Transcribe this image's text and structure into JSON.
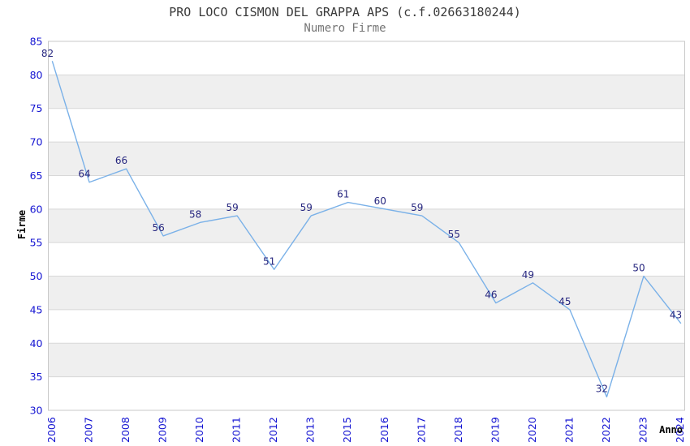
{
  "chart_data": {
    "type": "line",
    "title": "PRO LOCO CISMON DEL GRAPPA APS (c.f.02663180244)",
    "subtitle": "Numero Firme",
    "xlabel": "Anno",
    "ylabel": "Firme",
    "categories": [
      "2006",
      "2007",
      "2008",
      "2009",
      "2010",
      "2011",
      "2012",
      "2013",
      "2015",
      "2016",
      "2017",
      "2018",
      "2019",
      "2020",
      "2021",
      "2022",
      "2023",
      "2024"
    ],
    "values": [
      82,
      64,
      66,
      56,
      58,
      59,
      51,
      59,
      61,
      60,
      59,
      55,
      46,
      49,
      45,
      32,
      50,
      43
    ],
    "ylim": [
      30,
      85
    ],
    "ytick_step": 5,
    "yticks": [
      30,
      35,
      40,
      45,
      50,
      55,
      60,
      65,
      70,
      75,
      80,
      85
    ],
    "grid": "horizontal",
    "legend": "none",
    "data_labels_visible": true
  },
  "colors": {
    "line": "#7AB1E8",
    "data_label": "#26267F",
    "axis_tick_label": "#1414D2",
    "band_fill": "#EFEFEF",
    "gridline": "#D8D8D8",
    "plot_border": "#C8C8C8",
    "title": "#3A3A3A",
    "subtitle": "#757575",
    "axis_title": "#000000",
    "background": "#FFFFFF"
  }
}
